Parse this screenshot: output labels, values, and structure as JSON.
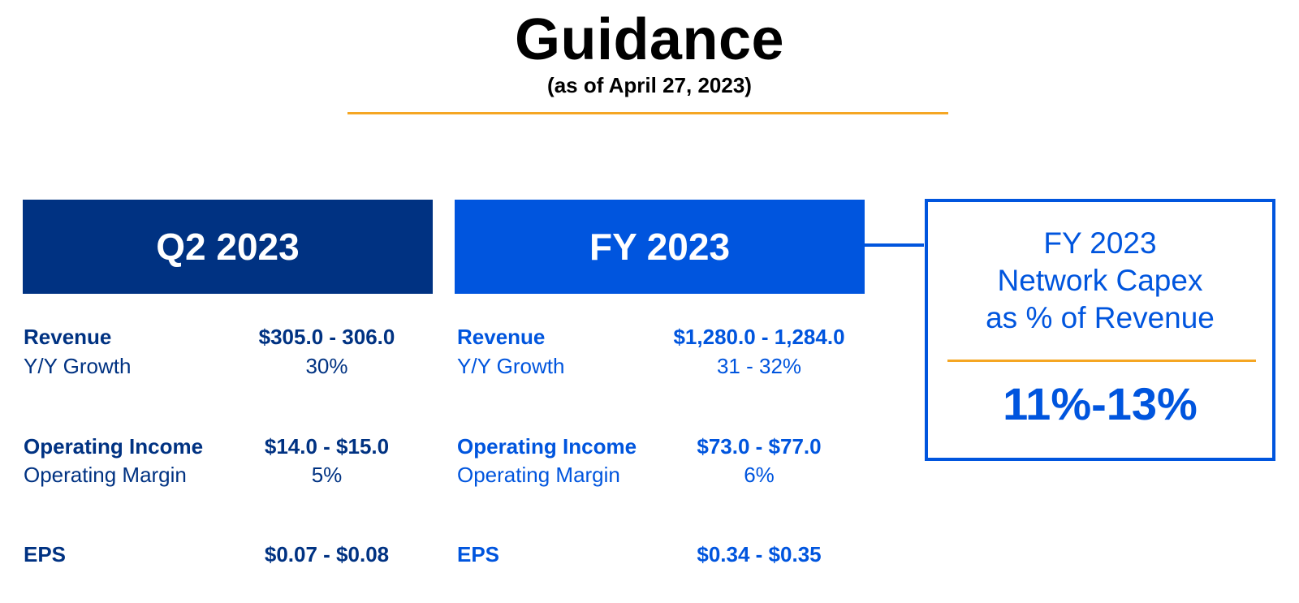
{
  "header": {
    "title": "Guidance",
    "subtitle": "(as of April 27, 2023)"
  },
  "q2": {
    "period": "Q2 2023",
    "revenue_label": "Revenue",
    "revenue_value": "$305.0 - 306.0",
    "growth_label": "Y/Y Growth",
    "growth_value": "30%",
    "opinc_label": "Operating Income",
    "opinc_value": "$14.0 - $15.0",
    "margin_label": "Operating Margin",
    "margin_value": "5%",
    "eps_label": "EPS",
    "eps_value": "$0.07 - $0.08"
  },
  "fy": {
    "period": "FY 2023",
    "revenue_label": "Revenue",
    "revenue_value": "$1,280.0 - 1,284.0",
    "growth_label": "Y/Y Growth",
    "growth_value": "31 - 32%",
    "opinc_label": "Operating Income",
    "opinc_value": "$73.0 - $77.0",
    "margin_label": "Operating Margin",
    "margin_value": "6%",
    "eps_label": "EPS",
    "eps_value": "$0.34 - $0.35"
  },
  "capex": {
    "line1": "FY 2023",
    "line2": "Network Capex",
    "line3": "as % of Revenue",
    "value": "11%-13%"
  },
  "colors": {
    "dark_navy": "#003282",
    "brand_blue": "#0055de",
    "accent_orange": "#f5a623"
  }
}
